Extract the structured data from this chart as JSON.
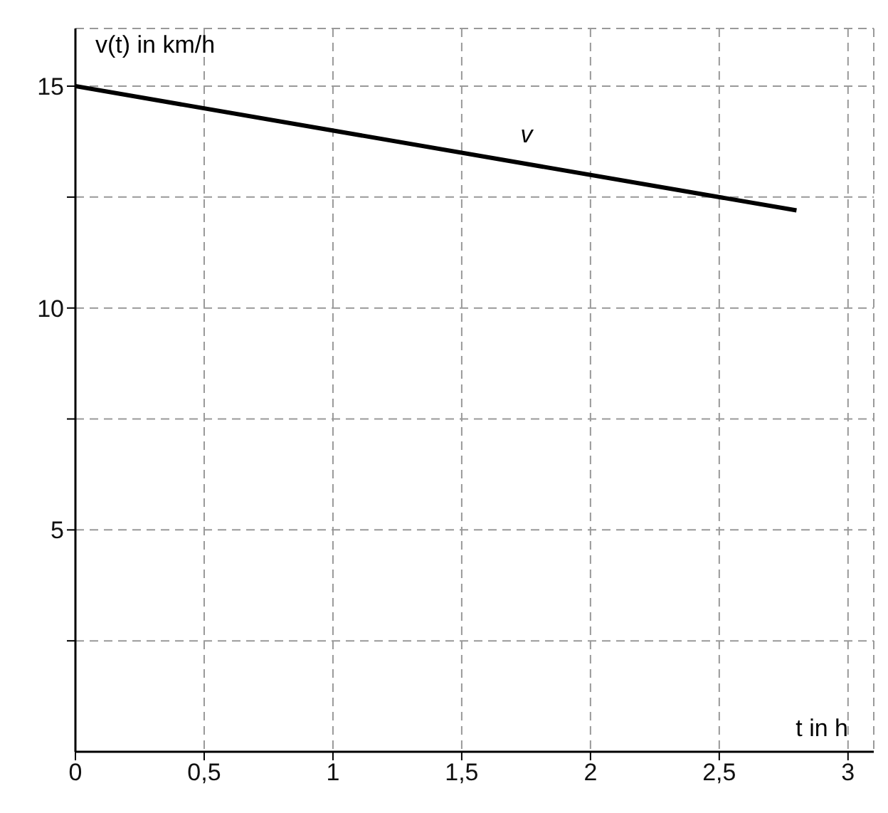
{
  "chart_data": {
    "type": "line",
    "xlabel": "t in h",
    "ylabel": "v(t) in km/h",
    "x": [
      0,
      2.8
    ],
    "series": [
      {
        "name": "v",
        "color": "#000000",
        "values": [
          15,
          12.2
        ]
      }
    ],
    "xlim": [
      0,
      3.1
    ],
    "ylim": [
      0,
      16.3
    ],
    "xticks": [
      0,
      {
        "value": 0.5,
        "label": "0,5"
      },
      1,
      {
        "value": 1.5,
        "label": "1,5"
      },
      2,
      {
        "value": 2.5,
        "label": "2,5"
      },
      3
    ],
    "yticks": [
      {
        "value": 2.5,
        "label": null
      },
      5,
      {
        "value": 7.5,
        "label": null
      },
      10,
      {
        "value": 12.5,
        "label": null
      },
      15
    ],
    "grid": true,
    "marker": "none",
    "line_style": "solid"
  }
}
